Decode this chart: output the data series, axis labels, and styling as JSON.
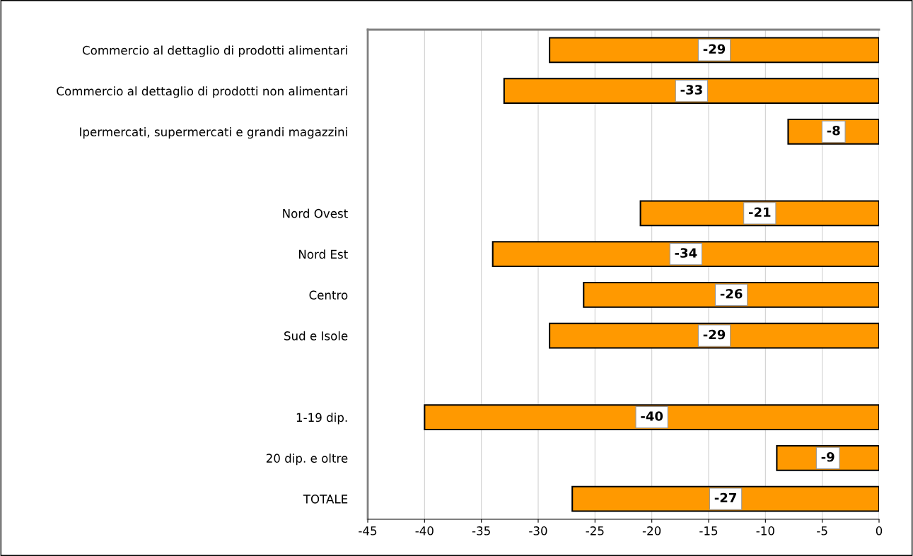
{
  "chart_data": {
    "type": "bar",
    "orientation": "horizontal",
    "categories": [
      "Commercio al dettaglio di prodotti alimentari",
      "Commercio al dettaglio di prodotti non alimentari",
      "Ipermercati, supermercati e grandi magazzini",
      null,
      "Nord Ovest",
      "Nord Est",
      "Centro",
      "Sud e Isole",
      null,
      "1-19 dip.",
      "20 dip. e oltre",
      "TOTALE"
    ],
    "values": [
      -29,
      -33,
      -8,
      null,
      -21,
      -34,
      -26,
      -29,
      null,
      -40,
      -9,
      -27
    ],
    "color": "#ff9900",
    "xlim": [
      -45,
      0
    ],
    "xticks": [
      -45,
      -40,
      -35,
      -30,
      -25,
      -20,
      -15,
      -10,
      -5,
      0
    ],
    "grid": "x",
    "legend": false,
    "data_labels": true
  }
}
